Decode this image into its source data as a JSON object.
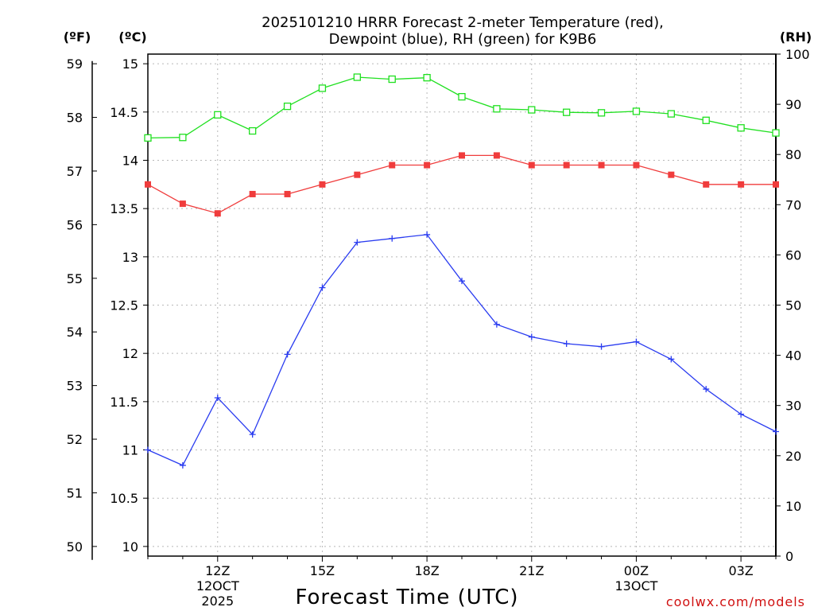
{
  "chart_data": {
    "type": "line",
    "title_line1": "2025101210 HRRR Forecast 2-meter Temperature (red),",
    "title_line2": "Dewpoint (blue), RH (green) for K9B6",
    "xlabel": "Forecast Time (UTC)",
    "credit": "coolwx.com/models",
    "unit_labels": {
      "fahrenheit": "(ºF)",
      "celsius": "(ºC)",
      "rh": "(RH)"
    },
    "x_hours": [
      10,
      11,
      12,
      13,
      14,
      15,
      16,
      17,
      18,
      19,
      20,
      21,
      22,
      23,
      24,
      25,
      26,
      27,
      28
    ],
    "xlim": [
      10,
      28
    ],
    "x_ticks": [
      {
        "hour": 12,
        "lines": [
          "12Z",
          "12OCT",
          "2025"
        ]
      },
      {
        "hour": 15,
        "lines": [
          "15Z"
        ]
      },
      {
        "hour": 18,
        "lines": [
          "18Z"
        ]
      },
      {
        "hour": 21,
        "lines": [
          "21Z"
        ]
      },
      {
        "hour": 24,
        "lines": [
          "00Z",
          "13OCT"
        ]
      },
      {
        "hour": 27,
        "lines": [
          "03Z"
        ]
      }
    ],
    "celsius_axis": {
      "ylim": [
        9.9,
        15.1
      ],
      "ticks": [
        "10",
        "10.5",
        "11",
        "11.5",
        "12",
        "12.5",
        "13",
        "13.5",
        "14",
        "14.5",
        "15"
      ]
    },
    "fahrenheit_axis": {
      "ticks": [
        "50",
        "51",
        "52",
        "53",
        "54",
        "55",
        "56",
        "57",
        "58",
        "59"
      ]
    },
    "rh_axis": {
      "ylim": [
        0,
        100
      ],
      "ticks": [
        "0",
        "10",
        "20",
        "30",
        "40",
        "50",
        "60",
        "70",
        "80",
        "90",
        "100"
      ]
    },
    "series": [
      {
        "name": "Temperature",
        "axis": "celsius",
        "color": "#f03c3c",
        "marker": "filled-square",
        "values": [
          13.75,
          13.55,
          13.45,
          13.65,
          13.65,
          13.75,
          13.85,
          13.95,
          13.95,
          14.05,
          14.05,
          13.95,
          13.95,
          13.95,
          13.95,
          13.85,
          13.75,
          13.75,
          13.75
        ]
      },
      {
        "name": "Dewpoint",
        "axis": "celsius",
        "color": "#2a3cf0",
        "marker": "plus",
        "values": [
          11.0,
          10.84,
          11.54,
          11.16,
          11.99,
          12.68,
          13.15,
          13.19,
          13.23,
          12.75,
          12.3,
          12.17,
          12.1,
          12.07,
          12.12,
          11.94,
          11.63,
          11.37,
          11.19
        ]
      },
      {
        "name": "RH",
        "axis": "rh",
        "color": "#20e020",
        "marker": "open-square",
        "values": [
          83.3,
          83.4,
          87.9,
          84.7,
          89.6,
          93.2,
          95.4,
          95.0,
          95.3,
          91.5,
          89.1,
          88.9,
          88.4,
          88.3,
          88.6,
          88.1,
          86.8,
          85.3,
          84.3
        ]
      }
    ]
  }
}
